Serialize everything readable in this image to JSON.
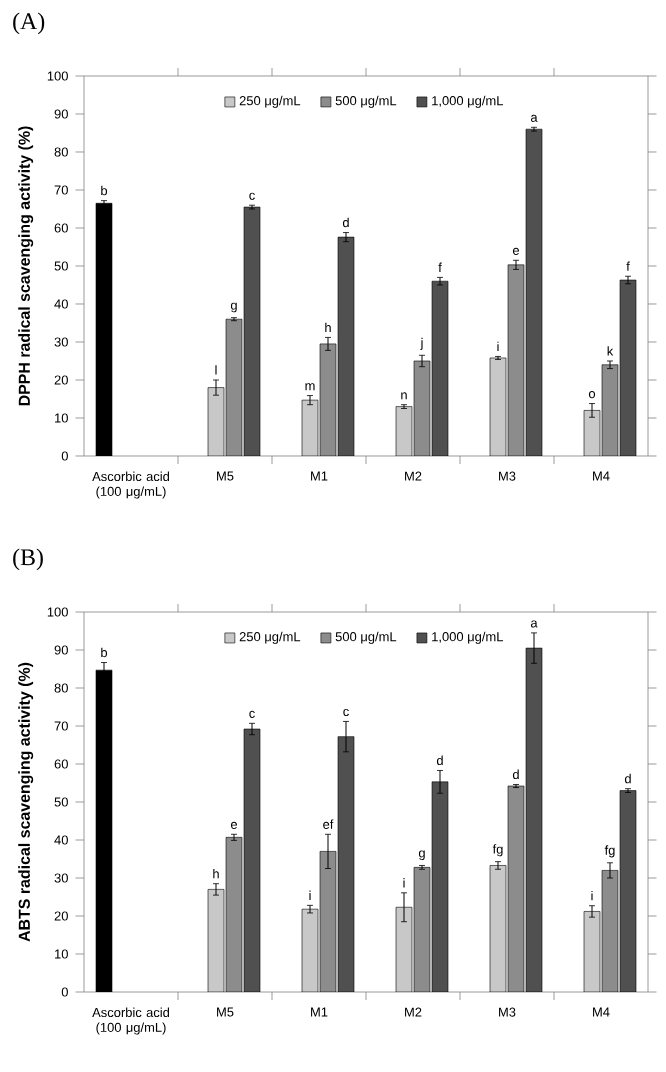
{
  "chart_data": [
    {
      "type": "bar",
      "title": "(A)",
      "ylabel": "DPPH radical scavenging activity (%)",
      "categories": [
        "Ascorbic acid (100 μg/mL)",
        "M5",
        "M1",
        "M2",
        "M3",
        "M4"
      ],
      "ylim": [
        0,
        100
      ],
      "yticks": [
        0,
        10,
        20,
        30,
        40,
        50,
        60,
        70,
        80,
        90,
        100
      ],
      "legend": "top",
      "grid": false,
      "series": [
        {
          "color": "#000000",
          "values": [
            66.5,
            null,
            null,
            null,
            null,
            null
          ],
          "errors": [
            0.7,
            null,
            null,
            null,
            null,
            null
          ],
          "value_labels": [
            "b",
            null,
            null,
            null,
            null,
            null
          ]
        },
        {
          "name": "250 μg/mL",
          "color": "#c8c8c8",
          "values": [
            null,
            18,
            14.7,
            13,
            25.8,
            12
          ],
          "errors": [
            null,
            2,
            1.2,
            0.5,
            0.4,
            1.8
          ],
          "value_labels": [
            null,
            "l",
            "m",
            "n",
            "i",
            "o"
          ]
        },
        {
          "name": "500 μg/mL",
          "color": "#8c8c8c",
          "values": [
            null,
            36,
            29.5,
            25,
            50.3,
            24
          ],
          "errors": [
            null,
            0.4,
            1.7,
            1.5,
            1.2,
            1
          ],
          "value_labels": [
            null,
            "g",
            "h",
            "j",
            "e",
            "k"
          ]
        },
        {
          "name": "1,000 μg/mL",
          "color": "#505050",
          "values": [
            null,
            65.5,
            57.6,
            46,
            86,
            46.3
          ],
          "errors": [
            null,
            0.5,
            1.2,
            1,
            0.5,
            1
          ],
          "value_labels": [
            null,
            "c",
            "d",
            "f",
            "a",
            "f"
          ]
        }
      ]
    },
    {
      "type": "bar",
      "title": "(B)",
      "ylabel": "ABTS radical scavenging activity (%)",
      "categories": [
        "Ascorbic acid (100 μg/mL)",
        "M5",
        "M1",
        "M2",
        "M3",
        "M4"
      ],
      "ylim": [
        0,
        100
      ],
      "yticks": [
        0,
        10,
        20,
        30,
        40,
        50,
        60,
        70,
        80,
        90,
        100
      ],
      "legend": "top",
      "grid": false,
      "series": [
        {
          "color": "#000000",
          "values": [
            84.7,
            null,
            null,
            null,
            null,
            null
          ],
          "errors": [
            2,
            null,
            null,
            null,
            null,
            null
          ],
          "value_labels": [
            "b",
            null,
            null,
            null,
            null,
            null
          ]
        },
        {
          "name": "250 μg/mL",
          "color": "#c8c8c8",
          "values": [
            null,
            27,
            21.8,
            22.3,
            33.3,
            21.2
          ],
          "errors": [
            null,
            1.5,
            1,
            3.8,
            1,
            1.5
          ],
          "value_labels": [
            null,
            "h",
            "i",
            "i",
            "fg",
            "i"
          ]
        },
        {
          "name": "500 μg/mL",
          "color": "#8c8c8c",
          "values": [
            null,
            40.7,
            37,
            32.8,
            54.2,
            32
          ],
          "errors": [
            null,
            0.8,
            4.5,
            0.5,
            0.4,
            2
          ],
          "value_labels": [
            null,
            "e",
            "ef",
            "g",
            "d",
            "fg"
          ]
        },
        {
          "name": "1,000 μg/mL",
          "color": "#505050",
          "values": [
            null,
            69.2,
            67.2,
            55.3,
            90.5,
            53
          ],
          "errors": [
            null,
            1.5,
            4,
            3,
            4,
            0.5
          ],
          "value_labels": [
            null,
            "c",
            "c",
            "d",
            "a",
            "d"
          ]
        }
      ]
    }
  ]
}
